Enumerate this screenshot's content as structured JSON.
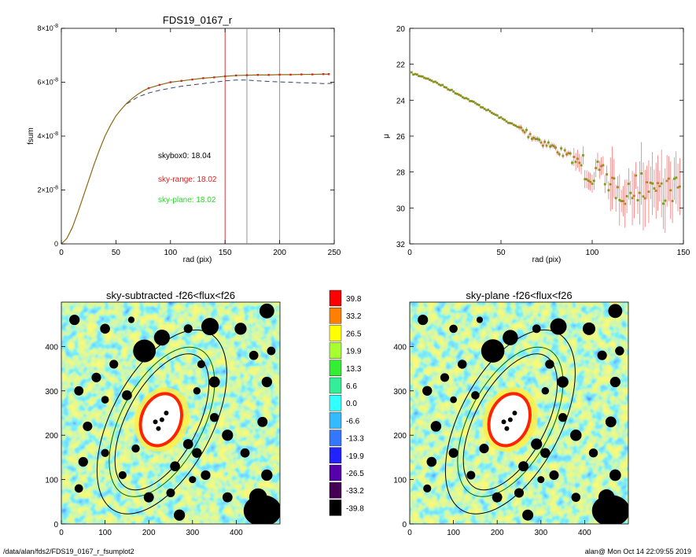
{
  "colors": {
    "sky_range": "#e02020",
    "sky_plane": "#22dd22",
    "model_line": "#000000",
    "dashed_line": "#334466",
    "mu_points": "#7a9a1a",
    "mu_errbar": "#ff6060",
    "vline_red": "#cc2222",
    "vline_grey": "#888888"
  },
  "chart_data": [
    {
      "type": "line",
      "title": "FDS19_0167_r",
      "xlabel": "rad (pix)",
      "ylabel": "fsum",
      "xlim": [
        0,
        250
      ],
      "ylim": [
        0,
        8e-08
      ],
      "xticks": [
        "0",
        "50",
        "100",
        "150",
        "200",
        "250"
      ],
      "xtick_values": [
        0,
        50,
        100,
        150,
        200,
        250
      ],
      "ytick_values": [
        0,
        2e-08,
        4e-08,
        6e-08,
        8e-08
      ],
      "ytick_mant": [
        "0",
        "2",
        "4",
        "6",
        "8"
      ],
      "ytick_times": "×10",
      "ytick_exp": "-8",
      "vertical_lines": [
        {
          "x": 150,
          "color": "red"
        },
        {
          "x": 170,
          "color": "grey"
        },
        {
          "x": 200,
          "color": "grey"
        }
      ],
      "annotations": [
        {
          "text": "skybox0: 18.04",
          "color": "black"
        },
        {
          "text": "sky-range: 18.02",
          "color": "red"
        },
        {
          "text": "sky-plane: 18.02",
          "color": "green"
        }
      ],
      "series": [
        {
          "style": "solid",
          "x": [
            0,
            5,
            10,
            15,
            20,
            25,
            30,
            35,
            40,
            45,
            50,
            55,
            60,
            65,
            70,
            75,
            80,
            90,
            100,
            110,
            120,
            130,
            140,
            150,
            160,
            170,
            180,
            190,
            200,
            210,
            220,
            230,
            240,
            245
          ],
          "y": [
            0,
            2e-09,
            6e-09,
            1.15e-08,
            1.75e-08,
            2.35e-08,
            2.95e-08,
            3.5e-08,
            4e-08,
            4.4e-08,
            4.75e-08,
            5e-08,
            5.22e-08,
            5.4e-08,
            5.55e-08,
            5.68e-08,
            5.78e-08,
            5.9e-08,
            6e-08,
            6.05e-08,
            6.1e-08,
            6.15e-08,
            6.18e-08,
            6.22e-08,
            6.25e-08,
            6.26e-08,
            6.27e-08,
            6.27e-08,
            6.28e-08,
            6.28e-08,
            6.29e-08,
            6.29e-08,
            6.3e-08,
            6.3e-08
          ]
        },
        {
          "style": "dashed",
          "x": [
            60,
            70,
            80,
            90,
            100,
            110,
            120,
            130,
            140,
            150,
            160,
            170,
            180,
            190,
            200,
            210,
            220,
            230,
            240,
            250
          ],
          "y": [
            5.2e-08,
            5.45e-08,
            5.6e-08,
            5.7e-08,
            5.78e-08,
            5.85e-08,
            5.9e-08,
            5.95e-08,
            6e-08,
            6.05e-08,
            6.08e-08,
            6.08e-08,
            6.05e-08,
            6.03e-08,
            6.01e-08,
            6e-08,
            5.98e-08,
            5.97e-08,
            5.95e-08,
            5.96e-08
          ]
        }
      ]
    },
    {
      "type": "scatter",
      "xlabel": "rad (pix)",
      "ylabel": "μ",
      "xlim": [
        0,
        150
      ],
      "ylim": [
        32,
        20
      ],
      "xticks": [
        "0",
        "50",
        "100",
        "150"
      ],
      "xtick_values": [
        0,
        50,
        100,
        150
      ],
      "yticks": [
        "20",
        "22",
        "24",
        "26",
        "28",
        "30",
        "32"
      ],
      "ytick_values": [
        20,
        22,
        24,
        26,
        28,
        30,
        32
      ],
      "trend": {
        "x": [
          1,
          10,
          20,
          30,
          40,
          50,
          60,
          70,
          80,
          90,
          100,
          110,
          120,
          130,
          140,
          148
        ],
        "y": [
          22.5,
          22.8,
          23.3,
          23.85,
          24.4,
          25.0,
          25.55,
          26.15,
          26.7,
          27.3,
          28.0,
          28.7,
          29.1,
          28.7,
          29.0,
          28.8
        ]
      }
    },
    {
      "type": "heatmap",
      "title": "sky-subtracted -f26<flux<f26",
      "xlim": [
        0,
        500
      ],
      "ylim": [
        0,
        500
      ],
      "xticks": [
        "0",
        "100",
        "200",
        "300",
        "400"
      ],
      "xtick_values": [
        0,
        100,
        200,
        300,
        400
      ],
      "yticks": [
        "0",
        "100",
        "200",
        "300",
        "400"
      ],
      "ytick_values": [
        0,
        100,
        200,
        300,
        400
      ]
    },
    {
      "type": "heatmap",
      "title": "sky-plane -f26<flux<f26",
      "xlim": [
        0,
        500
      ],
      "ylim": [
        0,
        500
      ],
      "xticks": [
        "0",
        "100",
        "200",
        "300",
        "400"
      ],
      "xtick_values": [
        0,
        100,
        200,
        300,
        400
      ],
      "yticks": [
        "0",
        "100",
        "200",
        "300",
        "400"
      ],
      "ytick_values": [
        0,
        100,
        200,
        300,
        400
      ]
    },
    {
      "type": "table",
      "colorbar_labels": [
        "39.8",
        "33.2",
        "26.5",
        "19.9",
        "13.3",
        "6.6",
        "0.0",
        "-6.6",
        "-13.3",
        "-19.9",
        "-26.5",
        "-33.2",
        "-39.8"
      ],
      "colorbar_colors": [
        "#ff0000",
        "#ff8000",
        "#ffff00",
        "#a8ff30",
        "#33ee33",
        "#33ee99",
        "#33ffff",
        "#33bbff",
        "#3377ff",
        "#2222ff",
        "#5500aa",
        "#440055",
        "#000000"
      ]
    }
  ],
  "footer": {
    "path": "/data/alan/fds2/FDS19_0167_r_fsumplot2",
    "stamp": "alan@  Mon Oct 14 22:09:55 2019"
  }
}
